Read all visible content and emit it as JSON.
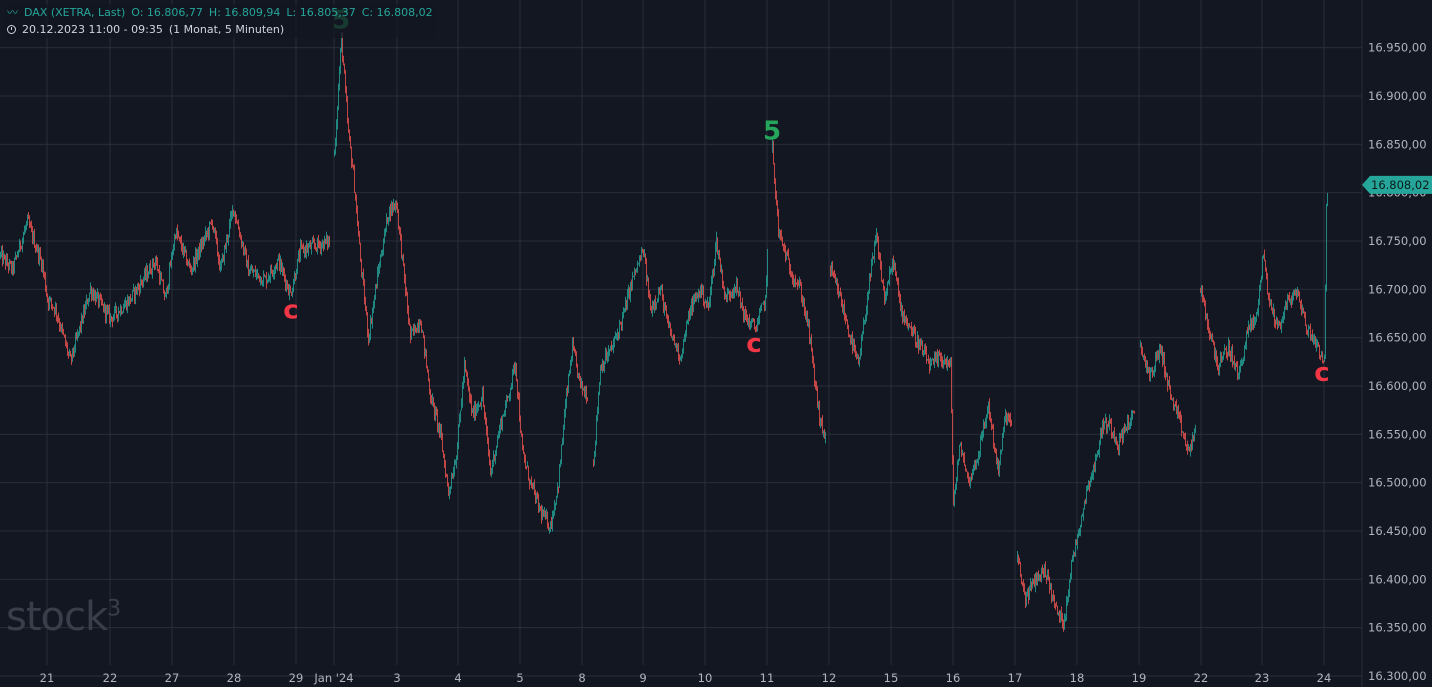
{
  "header": {
    "symbol": "DAX (XETRA, Last)",
    "open": "O: 16.806,77",
    "high": "H: 16.809,94",
    "low": "L: 16.805,37",
    "close": "C: 16.808,02",
    "range": "20.12.2023 11:00 - 09:35",
    "interval": "(1 Monat, 5 Minuten)"
  },
  "watermark": {
    "text": "stock",
    "sup": "3"
  },
  "colors": {
    "up": "#26a69a",
    "down": "#ef5350",
    "label_5": "#26a65b",
    "label_c": "#f23645",
    "price_tag": "#26a69a"
  },
  "chart_data": {
    "type": "candlestick",
    "ylim": [
      16300,
      16980
    ],
    "y_ticks": [
      "16.300,00",
      "16.350,00",
      "16.400,00",
      "16.450,00",
      "16.500,00",
      "16.550,00",
      "16.600,00",
      "16.650,00",
      "16.700,00",
      "16.750,00",
      "16.800,00",
      "16.850,00",
      "16.900,00",
      "16.950,00"
    ],
    "x_ticks": [
      "21",
      "22",
      "27",
      "28",
      "29",
      "Jan '24",
      "3",
      "4",
      "5",
      "8",
      "9",
      "10",
      "11",
      "12",
      "15",
      "16",
      "17",
      "18",
      "19",
      "22",
      "23",
      "24"
    ],
    "last_price": "16.808,02",
    "path": [
      [
        0,
        16735
      ],
      [
        12,
        16720
      ],
      [
        27,
        16770
      ],
      [
        42,
        16725
      ],
      [
        47,
        16690
      ],
      [
        55,
        16680
      ],
      [
        70,
        16625
      ],
      [
        90,
        16700
      ],
      [
        110,
        16670
      ],
      [
        130,
        16690
      ],
      [
        155,
        16730
      ],
      [
        165,
        16690
      ],
      [
        175,
        16760
      ],
      [
        190,
        16720
      ],
      [
        212,
        16770
      ],
      [
        220,
        16720
      ],
      [
        233,
        16785
      ],
      [
        248,
        16720
      ],
      [
        265,
        16710
      ],
      [
        278,
        16730
      ],
      [
        290,
        16695
      ],
      [
        300,
        16740
      ],
      [
        315,
        16745
      ],
      [
        330,
        16750
      ],
      [
        334,
        16840
      ],
      [
        341,
        16960
      ],
      [
        348,
        16860
      ],
      [
        353,
        16820
      ],
      [
        360,
        16730
      ],
      [
        368,
        16650
      ],
      [
        378,
        16720
      ],
      [
        388,
        16780
      ],
      [
        396,
        16790
      ],
      [
        403,
        16720
      ],
      [
        410,
        16650
      ],
      [
        420,
        16670
      ],
      [
        430,
        16590
      ],
      [
        440,
        16550
      ],
      [
        448,
        16490
      ],
      [
        456,
        16530
      ],
      [
        464,
        16620
      ],
      [
        472,
        16570
      ],
      [
        482,
        16590
      ],
      [
        490,
        16510
      ],
      [
        500,
        16560
      ],
      [
        508,
        16590
      ],
      [
        515,
        16625
      ],
      [
        522,
        16530
      ],
      [
        530,
        16500
      ],
      [
        540,
        16470
      ],
      [
        550,
        16455
      ],
      [
        558,
        16500
      ],
      [
        565,
        16580
      ],
      [
        572,
        16640
      ],
      [
        580,
        16600
      ],
      [
        588,
        16590
      ],
      [
        593,
        16520
      ],
      [
        600,
        16620
      ],
      [
        612,
        16640
      ],
      [
        622,
        16670
      ],
      [
        632,
        16710
      ],
      [
        643,
        16740
      ],
      [
        650,
        16680
      ],
      [
        660,
        16700
      ],
      [
        668,
        16660
      ],
      [
        680,
        16630
      ],
      [
        690,
        16680
      ],
      [
        700,
        16700
      ],
      [
        708,
        16680
      ],
      [
        716,
        16750
      ],
      [
        725,
        16690
      ],
      [
        735,
        16705
      ],
      [
        745,
        16670
      ],
      [
        755,
        16660
      ],
      [
        765,
        16690
      ],
      [
        768,
        16760
      ],
      [
        772,
        16845
      ],
      [
        778,
        16760
      ],
      [
        790,
        16720
      ],
      [
        800,
        16700
      ],
      [
        808,
        16660
      ],
      [
        815,
        16600
      ],
      [
        820,
        16560
      ],
      [
        826,
        16545
      ],
      [
        830,
        16720
      ],
      [
        840,
        16690
      ],
      [
        850,
        16650
      ],
      [
        858,
        16620
      ],
      [
        868,
        16700
      ],
      [
        876,
        16755
      ],
      [
        884,
        16690
      ],
      [
        893,
        16730
      ],
      [
        900,
        16680
      ],
      [
        910,
        16660
      ],
      [
        920,
        16640
      ],
      [
        930,
        16620
      ],
      [
        940,
        16630
      ],
      [
        950,
        16620
      ],
      [
        953,
        16480
      ],
      [
        960,
        16540
      ],
      [
        968,
        16500
      ],
      [
        978,
        16530
      ],
      [
        988,
        16580
      ],
      [
        998,
        16510
      ],
      [
        1005,
        16570
      ],
      [
        1012,
        16560
      ],
      [
        1017,
        16420
      ],
      [
        1025,
        16380
      ],
      [
        1035,
        16400
      ],
      [
        1045,
        16410
      ],
      [
        1055,
        16370
      ],
      [
        1063,
        16355
      ],
      [
        1072,
        16420
      ],
      [
        1080,
        16460
      ],
      [
        1088,
        16500
      ],
      [
        1095,
        16520
      ],
      [
        1102,
        16560
      ],
      [
        1110,
        16560
      ],
      [
        1118,
        16540
      ],
      [
        1126,
        16560
      ],
      [
        1135,
        16570
      ],
      [
        1140,
        16640
      ],
      [
        1150,
        16610
      ],
      [
        1160,
        16640
      ],
      [
        1170,
        16590
      ],
      [
        1180,
        16560
      ],
      [
        1188,
        16530
      ],
      [
        1196,
        16560
      ],
      [
        1200,
        16700
      ],
      [
        1208,
        16660
      ],
      [
        1218,
        16620
      ],
      [
        1228,
        16640
      ],
      [
        1238,
        16610
      ],
      [
        1248,
        16660
      ],
      [
        1256,
        16670
      ],
      [
        1263,
        16740
      ],
      [
        1268,
        16690
      ],
      [
        1278,
        16660
      ],
      [
        1288,
        16690
      ],
      [
        1298,
        16695
      ],
      [
        1306,
        16660
      ],
      [
        1313,
        16650
      ],
      [
        1318,
        16640
      ],
      [
        1324,
        16625
      ],
      [
        1326,
        16790
      ],
      [
        1328,
        16808
      ]
    ],
    "annotations": [
      {
        "text": "5",
        "x": 341,
        "y": 16970,
        "color": "label_5"
      },
      {
        "text": "5",
        "x": 772,
        "y": 16855,
        "color": "label_5"
      },
      {
        "text": "c",
        "x": 291,
        "y": 16670,
        "color": "label_c"
      },
      {
        "text": "c",
        "x": 754,
        "y": 16635,
        "color": "label_c"
      },
      {
        "text": "c",
        "x": 1322,
        "y": 16605,
        "color": "label_c"
      }
    ]
  }
}
